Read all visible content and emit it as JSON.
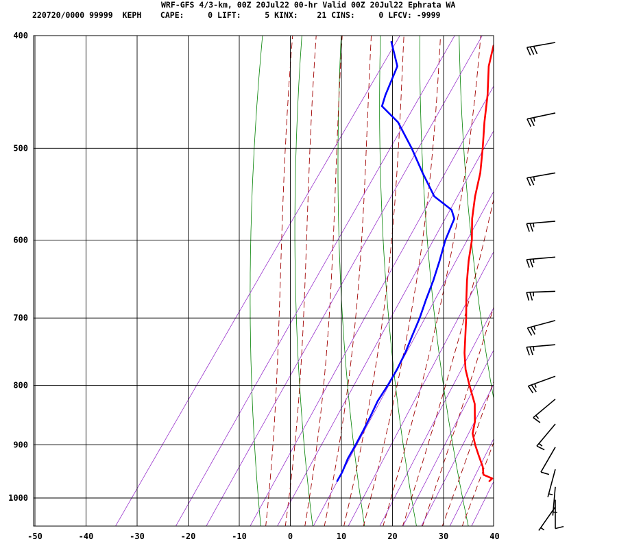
{
  "header": {
    "title": "WRF-GFS 4/3-km, 00Z 20Jul22 00-hr Valid 00Z 20Jul22 Ephrata WA",
    "subtitle": "220720/0000 99999  KEPH    CAPE:     0 LIFT:     5 KINX:    21 CINS:     0 LFCV: -9999"
  },
  "chart_data": {
    "type": "line",
    "title": "WRF-GFS 4/3-km, 00Z 20Jul22 00-hr Valid 00Z 20Jul22 Ephrata WA",
    "xlabel": "",
    "ylabel": "",
    "x_axis": {
      "range": [
        -50,
        40
      ],
      "ticks": [
        -50,
        -40,
        -30,
        -20,
        -10,
        0,
        10,
        20,
        30,
        40
      ],
      "tick_labels": [
        "-50",
        "-40",
        "-30",
        "-20",
        "-10",
        "0",
        "10",
        "20",
        "30",
        "40"
      ]
    },
    "y_axis": {
      "scale": "log",
      "inverted": true,
      "range": [
        1040,
        400
      ],
      "ticks": [
        400,
        500,
        600,
        700,
        800,
        900,
        1000
      ],
      "tick_labels": [
        "400",
        "500",
        "600",
        "700",
        "800",
        "900",
        "1000"
      ]
    },
    "grid": true,
    "series": [
      {
        "color": "#ff0000",
        "points": [
          {
            "p": 967,
            "t": 33.0
          },
          {
            "p": 962,
            "t": 33.2
          },
          {
            "p": 955,
            "t": 31.0
          },
          {
            "p": 940,
            "t": 29.8
          },
          {
            "p": 920,
            "t": 27.6
          },
          {
            "p": 900,
            "t": 25.4
          },
          {
            "p": 880,
            "t": 23.4
          },
          {
            "p": 860,
            "t": 22.3
          },
          {
            "p": 830,
            "t": 19.9
          },
          {
            "p": 800,
            "t": 16.4
          },
          {
            "p": 775,
            "t": 13.5
          },
          {
            "p": 750,
            "t": 11.1
          },
          {
            "p": 725,
            "t": 9.0
          },
          {
            "p": 700,
            "t": 6.8
          },
          {
            "p": 675,
            "t": 4.4
          },
          {
            "p": 650,
            "t": 2.0
          },
          {
            "p": 625,
            "t": -0.3
          },
          {
            "p": 600,
            "t": -2.4
          },
          {
            "p": 575,
            "t": -5.2
          },
          {
            "p": 550,
            "t": -7.6
          },
          {
            "p": 525,
            "t": -9.7
          },
          {
            "p": 500,
            "t": -12.5
          },
          {
            "p": 475,
            "t": -15.6
          },
          {
            "p": 450,
            "t": -18.6
          },
          {
            "p": 425,
            "t": -22.2
          },
          {
            "p": 408,
            "t": -24.0
          }
        ]
      },
      {
        "color": "#0000ff",
        "points": [
          {
            "p": 967,
            "t": 3.2
          },
          {
            "p": 950,
            "t": 3.0
          },
          {
            "p": 925,
            "t": 2.3
          },
          {
            "p": 900,
            "t": 2.0
          },
          {
            "p": 875,
            "t": 1.6
          },
          {
            "p": 850,
            "t": 1.1
          },
          {
            "p": 825,
            "t": 0.5
          },
          {
            "p": 800,
            "t": 0.4
          },
          {
            "p": 775,
            "t": 0.1
          },
          {
            "p": 750,
            "t": -0.5
          },
          {
            "p": 725,
            "t": -1.4
          },
          {
            "p": 700,
            "t": -2.3
          },
          {
            "p": 675,
            "t": -3.5
          },
          {
            "p": 650,
            "t": -4.6
          },
          {
            "p": 625,
            "t": -6.0
          },
          {
            "p": 600,
            "t": -7.6
          },
          {
            "p": 575,
            "t": -8.7
          },
          {
            "p": 565,
            "t": -10.4
          },
          {
            "p": 550,
            "t": -15.6
          },
          {
            "p": 525,
            "t": -21.0
          },
          {
            "p": 500,
            "t": -26.4
          },
          {
            "p": 475,
            "t": -32.5
          },
          {
            "p": 460,
            "t": -37.8
          },
          {
            "p": 450,
            "t": -38.6
          },
          {
            "p": 425,
            "t": -40.1
          },
          {
            "p": 405,
            "t": -44.5
          }
        ]
      }
    ],
    "reference_lines": {
      "isotherms": {
        "color": "#000000",
        "values": [
          -50,
          -40,
          -30,
          -20,
          -10,
          0,
          10,
          20,
          30,
          40
        ]
      },
      "isobars": {
        "color": "#000000",
        "values": [
          400,
          500,
          600,
          700,
          800,
          900,
          1000
        ]
      },
      "dry_adiabats": {
        "color": "#008000",
        "theta_c": [
          -10,
          0,
          10,
          20,
          30,
          40,
          50,
          60,
          70,
          80,
          90,
          100
        ]
      },
      "moist_adiabats": {
        "color": "#a00000",
        "theta_w_c": [
          -8,
          -4,
          0,
          4,
          8,
          12,
          16,
          20,
          24,
          28,
          32
        ]
      },
      "mixing_ratio_lines": {
        "color": "#9933cc",
        "w_gkg": [
          0.2,
          0.6,
          1,
          2,
          3,
          5,
          8,
          12,
          16,
          20,
          28,
          36,
          48
        ]
      }
    },
    "wind_barbs": [
      {
        "p": 400,
        "dir": 260,
        "spd": 30
      },
      {
        "p": 460,
        "dir": 258,
        "spd": 25
      },
      {
        "p": 518,
        "dir": 260,
        "spd": 25
      },
      {
        "p": 570,
        "dir": 265,
        "spd": 25
      },
      {
        "p": 612,
        "dir": 265,
        "spd": 25
      },
      {
        "p": 655,
        "dir": 268,
        "spd": 25
      },
      {
        "p": 694,
        "dir": 255,
        "spd": 25
      },
      {
        "p": 728,
        "dir": 265,
        "spd": 25
      },
      {
        "p": 775,
        "dir": 250,
        "spd": 25
      },
      {
        "p": 811,
        "dir": 230,
        "spd": 15
      },
      {
        "p": 852,
        "dir": 220,
        "spd": 15
      },
      {
        "p": 892,
        "dir": 210,
        "spd": 10
      },
      {
        "p": 932,
        "dir": 195,
        "spd": 5
      },
      {
        "p": 965,
        "dir": 185,
        "spd": 5
      },
      {
        "p": 990,
        "dir": 180,
        "spd": 10
      },
      {
        "p": 1010,
        "dir": 215,
        "spd": 5
      }
    ]
  }
}
